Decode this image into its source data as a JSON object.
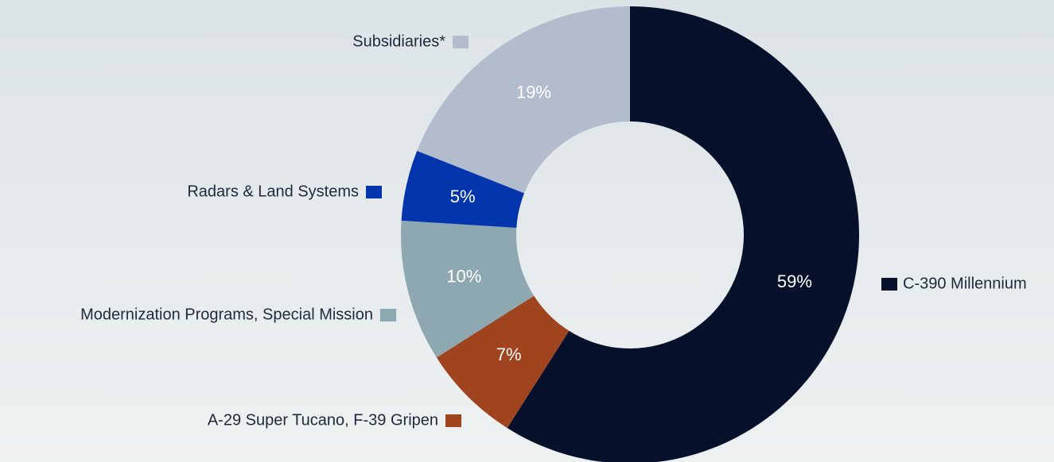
{
  "chart_data": {
    "type": "donut",
    "categories": [
      "C-390 Millennium",
      "A-29 Super Tucano, F-39 Gripen",
      "Modernization Programs, Special Mission",
      "Radars & Land Systems",
      "Subsidiaries*"
    ],
    "values": [
      59,
      7,
      10,
      5,
      19
    ],
    "value_labels": [
      "59%",
      "7%",
      "10%",
      "5%",
      "19%"
    ],
    "colors": [
      "#07112b",
      "#a0431f",
      "#8ea8b1",
      "#0335ad",
      "#b3bccd"
    ]
  }
}
